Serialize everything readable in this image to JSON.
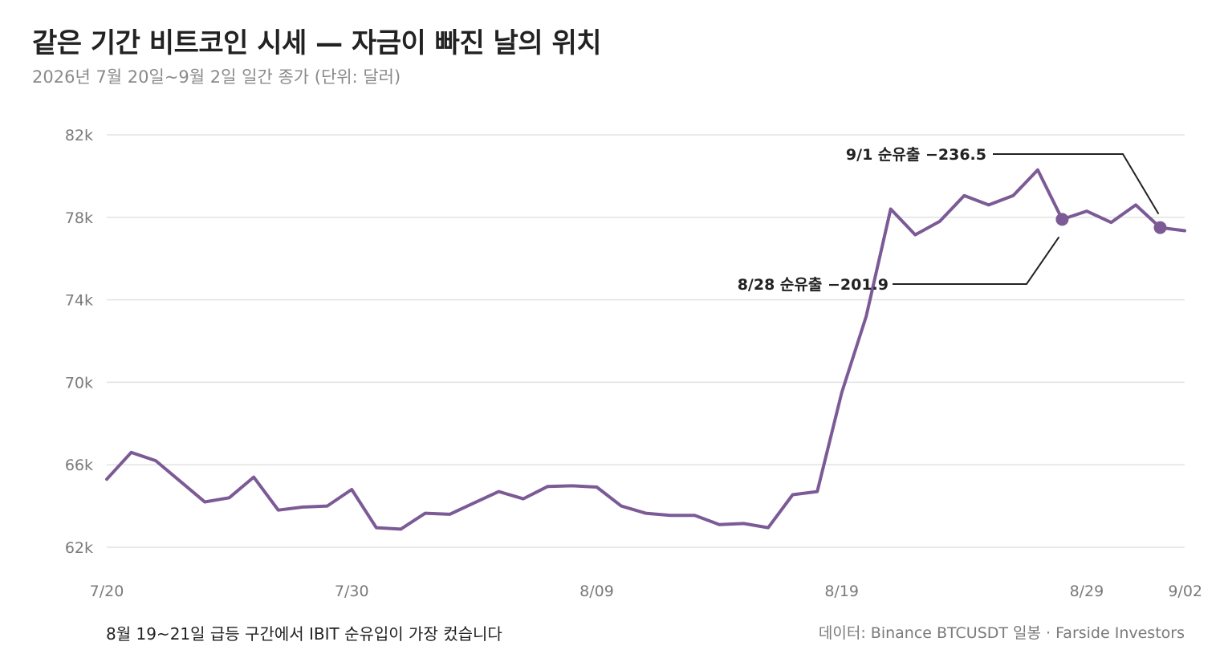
{
  "title": "같은 기간 비트코인 시세 — 자금이 빠진 날의 위치",
  "subtitle": "2026년 7월 20일~9월 2일 일간 종가 (단위: 달러)",
  "note": "8월 19~21일 급등 구간에서 IBIT 순유입이 가장 컸습니다",
  "source": "데이터: Binance BTCUSDT 일봉 · Farside Investors",
  "colors": {
    "line": "#7b5a96",
    "grid": "#e2e2e2",
    "text": "#222222",
    "muted": "#7a7a7a"
  },
  "chart_data": {
    "type": "line",
    "title": "같은 기간 비트코인 시세 — 자금이 빠진 날의 위치",
    "subtitle": "2026년 7월 20일~9월 2일 일간 종가 (단위: 달러)",
    "ylim": [
      62000,
      82000
    ],
    "yticks": [
      {
        "value": 62000,
        "label": "62k"
      },
      {
        "value": 66000,
        "label": "66k"
      },
      {
        "value": 70000,
        "label": "70k"
      },
      {
        "value": 74000,
        "label": "74k"
      },
      {
        "value": 78000,
        "label": "78k"
      },
      {
        "value": 82000,
        "label": "82k"
      }
    ],
    "xticks": [
      "7/20",
      "7/30",
      "8/09",
      "8/19",
      "8/29",
      "9/02"
    ],
    "grid": true,
    "series": [
      {
        "x": [
          "7/20",
          "7/21",
          "7/22",
          "7/23",
          "7/24",
          "7/25",
          "7/26",
          "7/27",
          "7/28",
          "7/29",
          "7/30",
          "7/31",
          "8/01",
          "8/02",
          "8/03",
          "8/04",
          "8/05",
          "8/06",
          "8/07",
          "8/08",
          "8/09",
          "8/10",
          "8/11",
          "8/12",
          "8/13",
          "8/14",
          "8/15",
          "8/16",
          "8/17",
          "8/18",
          "8/19",
          "8/20",
          "8/21",
          "8/22",
          "8/23",
          "8/24",
          "8/25",
          "8/26",
          "8/27",
          "8/28",
          "8/29",
          "8/30",
          "8/31",
          "9/01",
          "9/02"
        ],
        "values": [
          65300,
          66600,
          66200,
          65200,
          64200,
          64400,
          65400,
          63800,
          63950,
          64000,
          64800,
          62950,
          62880,
          63650,
          63600,
          64150,
          64700,
          64350,
          64950,
          64980,
          64920,
          64000,
          63650,
          63550,
          63550,
          63100,
          63150,
          62950,
          64550,
          64700,
          69500,
          73200,
          78400,
          77150,
          77800,
          79050,
          78600,
          79050,
          80300,
          77900,
          78300,
          77750,
          78600,
          77500,
          77350
        ]
      }
    ],
    "annotations": [
      {
        "x": "8/28",
        "value": 77900,
        "label": "8/28 순유출 −201.9"
      },
      {
        "x": "9/01",
        "value": 77500,
        "label": "9/1 순유출 −236.5"
      }
    ]
  }
}
